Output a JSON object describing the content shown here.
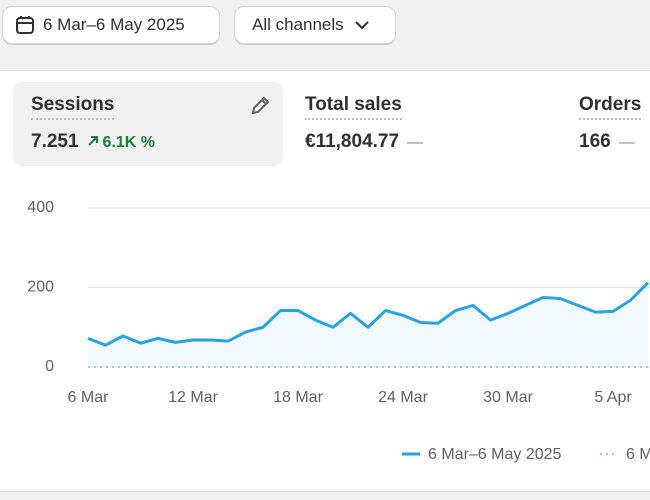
{
  "toolbar": {
    "date_range": "6 Mar–6 May 2025",
    "channel_filter": "All channels"
  },
  "metrics": [
    {
      "label": "Sessions",
      "value": "7.251",
      "change": "6.1K %"
    },
    {
      "label": "Total sales",
      "value": "€11,804.77",
      "change": "—"
    },
    {
      "label": "Orders",
      "value": "166",
      "change": "—"
    }
  ],
  "chart_data": {
    "type": "line",
    "categories": [
      "6 Mar",
      null,
      null,
      null,
      null,
      null,
      "12 Mar",
      null,
      null,
      null,
      null,
      null,
      "18 Mar",
      null,
      null,
      null,
      null,
      null,
      "24 Mar",
      null,
      null,
      null,
      null,
      null,
      "30 Mar",
      null,
      null,
      null,
      null,
      null,
      "5 Apr",
      null,
      null
    ],
    "series": [
      {
        "name": "6 Mar–6 May 2025",
        "color": "#29a3e0",
        "style": "solid",
        "values": [
          72,
          55,
          78,
          60,
          72,
          62,
          68,
          68,
          65,
          88,
          100,
          142,
          142,
          118,
          100,
          135,
          100,
          142,
          130,
          112,
          110,
          142,
          155,
          118,
          135,
          155,
          175,
          172,
          155,
          138,
          140,
          168,
          212
        ]
      },
      {
        "name": "6 M",
        "color": "#8fcbeb",
        "style": "dotted",
        "values": [
          0,
          0,
          0,
          0,
          0,
          0,
          0,
          0,
          0,
          0,
          0,
          0,
          0,
          0,
          0,
          0,
          0,
          0,
          0,
          0,
          0,
          0,
          0,
          0,
          0,
          0,
          0,
          0,
          0,
          0,
          0,
          0,
          0
        ]
      }
    ],
    "ylim": [
      0,
      400
    ],
    "yticks": [
      0,
      200,
      400
    ],
    "grid": true
  }
}
